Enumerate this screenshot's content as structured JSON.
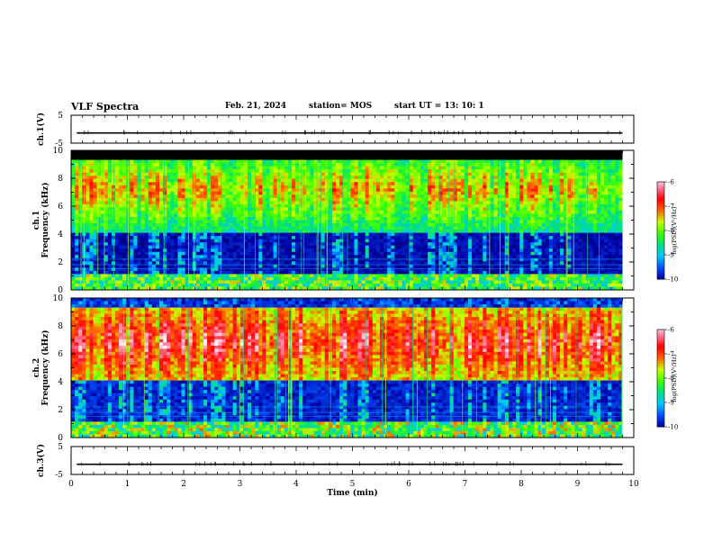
{
  "header": {
    "title": "VLF Spectra",
    "date": "Feb. 21, 2024",
    "station": "station= MOS",
    "start": "start  UT =   13: 10: 1"
  },
  "chart_data": [
    {
      "type": "line",
      "panel": "ch1-waveform",
      "ylabel": "ch.1(V)",
      "ylim": [
        -5,
        5
      ],
      "y_ticks": [
        5,
        -5
      ],
      "x": [
        0,
        10
      ],
      "series": [
        {
          "values": [
            -1.2,
            -1.2
          ]
        }
      ]
    },
    {
      "type": "heatmap",
      "panel": "ch1-spectrogram",
      "ylabel": "ch.1\nFrequency (kHz)",
      "ylim": [
        0,
        10
      ],
      "y_ticks": [
        0,
        2,
        4,
        6,
        8,
        10
      ],
      "xlim": [
        0,
        9.8
      ],
      "colorbar": {
        "label": "log(PSD)(V²/Hz)",
        "ticks": [
          -6,
          -7,
          -8,
          -9,
          -10
        ],
        "range": [
          -10,
          -6
        ]
      }
    },
    {
      "type": "heatmap",
      "panel": "ch2-spectrogram",
      "ylabel": "ch.2\nFrequency (kHz)",
      "ylim": [
        0,
        10
      ],
      "y_ticks": [
        0,
        2,
        4,
        6,
        8,
        10
      ],
      "xlim": [
        0,
        9.8
      ],
      "colorbar": {
        "label": "log(PSD)(V²/Hz)",
        "ticks": [
          -6,
          -7,
          -8,
          -9,
          -10
        ],
        "range": [
          -10,
          -6
        ]
      }
    },
    {
      "type": "line",
      "panel": "ch3-waveform",
      "ylabel": "ch.3(V)",
      "ylim": [
        -5,
        5
      ],
      "y_ticks": [
        5,
        -5
      ],
      "x": [
        0,
        10
      ],
      "series": [
        {
          "values": [
            -1.2,
            -1.2
          ]
        }
      ]
    },
    {
      "type": "axis",
      "xlabel": "Time (min)",
      "xlim": [
        0,
        10
      ],
      "x_ticks": [
        "0",
        "1",
        "2",
        "3",
        "4",
        "5",
        "6",
        "7",
        "8",
        "9",
        "10"
      ]
    }
  ],
  "colors": {
    "background": "#ffffff",
    "spectro_floor": "#000000",
    "colormap": [
      "#000010",
      "#0000a0",
      "#0050ff",
      "#00c8ff",
      "#00e080",
      "#40ff00",
      "#c8ff00",
      "#ff6000",
      "#ff0000",
      "#ff80a0",
      "#ffffff"
    ]
  }
}
